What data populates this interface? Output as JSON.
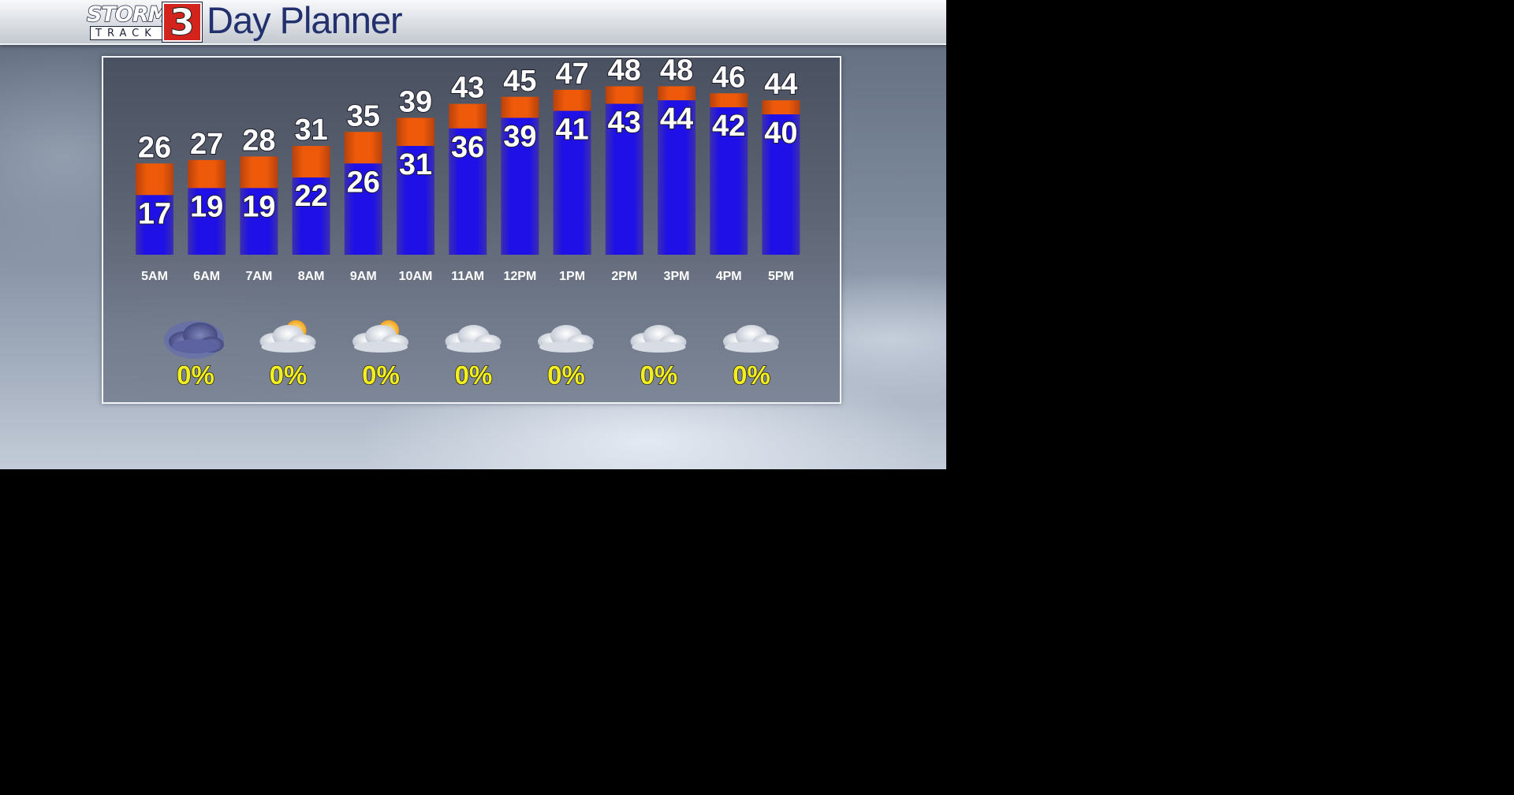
{
  "header": {
    "logo_storm": "STORM",
    "logo_track": "TRACK",
    "logo_number": "3",
    "title": "Day Planner"
  },
  "colors": {
    "bar_blue": "#1e10e0",
    "bar_orange": "#e8520a",
    "precip_yellow": "#f2ee22",
    "title_navy": "#22306e"
  },
  "chart_data": {
    "type": "bar",
    "categories": [
      "5AM",
      "6AM",
      "7AM",
      "8AM",
      "9AM",
      "10AM",
      "11AM",
      "12PM",
      "1PM",
      "2PM",
      "3PM",
      "4PM",
      "5PM"
    ],
    "series": [
      {
        "values": [
          26,
          27,
          28,
          31,
          35,
          39,
          43,
          45,
          47,
          48,
          48,
          46,
          44
        ]
      },
      {
        "values": [
          17,
          19,
          19,
          22,
          26,
          31,
          36,
          39,
          41,
          43,
          44,
          42,
          40
        ]
      }
    ],
    "precipitation": {
      "icons": [
        "cloudy-night-icon",
        "partly-cloudy-icon",
        "partly-cloudy-icon",
        "cloudy-icon",
        "cloudy-icon",
        "cloudy-icon",
        "cloudy-icon"
      ],
      "values": [
        "0%",
        "0%",
        "0%",
        "0%",
        "0%",
        "0%",
        "0%"
      ]
    }
  }
}
